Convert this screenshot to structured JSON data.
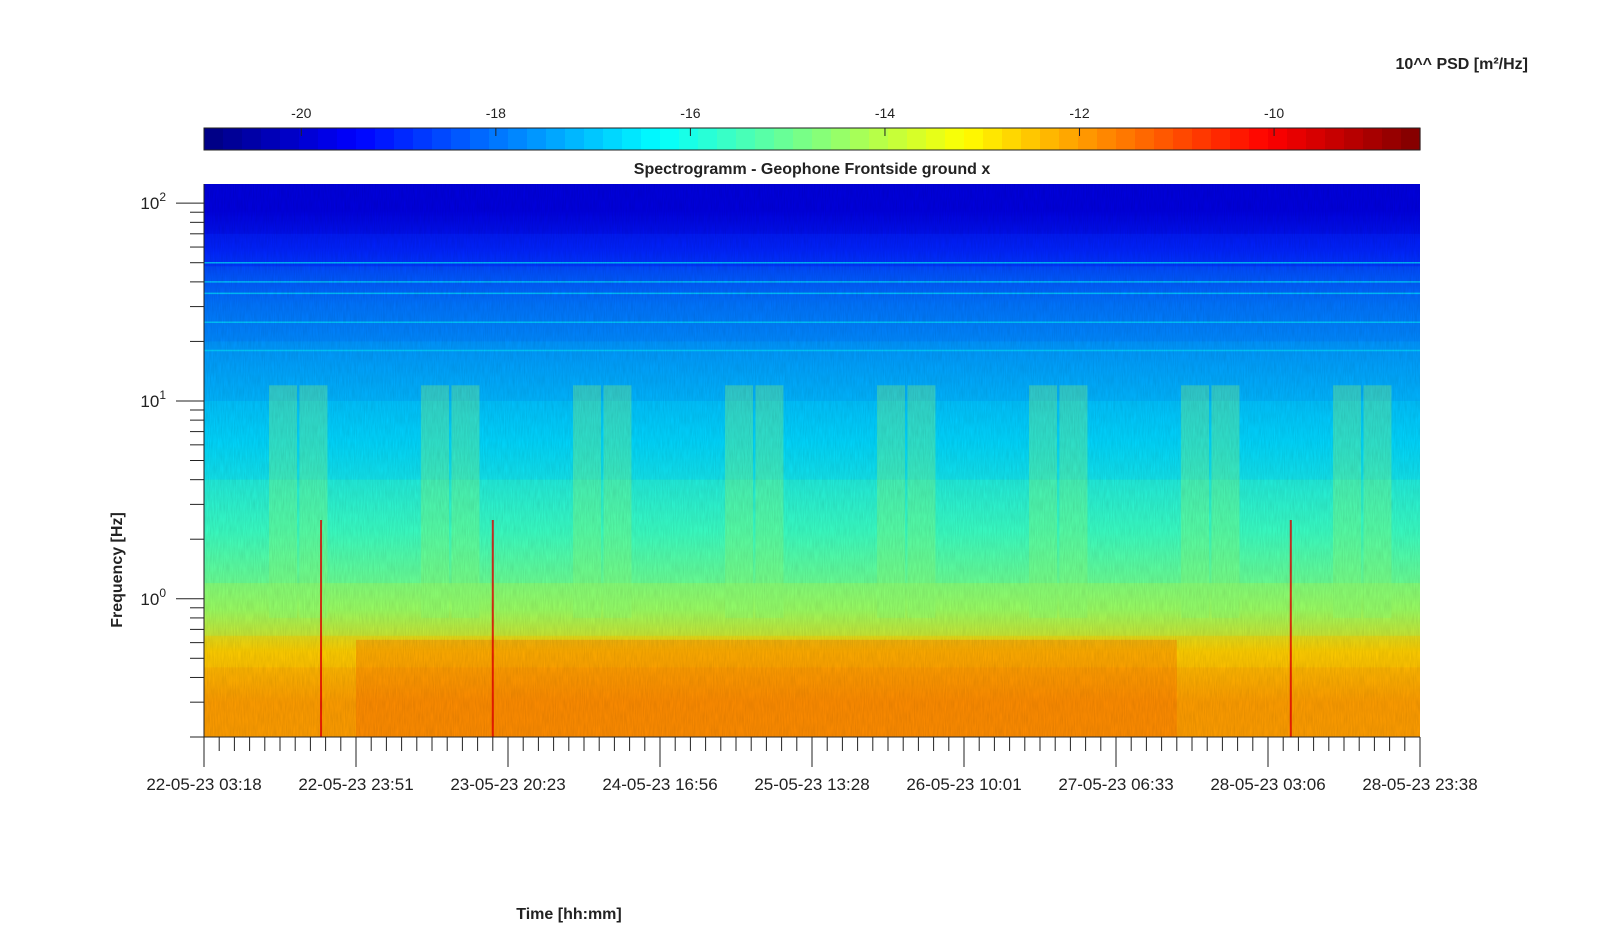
{
  "chart_data": {
    "type": "heatmap",
    "title": "Spectrogramm - Geophone Frontside ground x",
    "xlabel": "Time [hh:mm]",
    "ylabel": "Frequency [Hz]",
    "colorbar_label": "10^^ PSD [m²/Hz]",
    "colormap": "jet",
    "colorbar": {
      "range": [
        -21,
        -8.5
      ],
      "ticks": [
        -20,
        -18,
        -16,
        -14,
        -12,
        -10
      ],
      "tick_labels": [
        "-20",
        "-18",
        "-16",
        "-14",
        "-12",
        "-10"
      ]
    },
    "x_ticks": [
      "22-05-23 03:18",
      "22-05-23 23:51",
      "23-05-23 20:23",
      "24-05-23 16:56",
      "25-05-23 13:28",
      "26-05-23 10:01",
      "27-05-23 06:33",
      "28-05-23 03:06",
      "28-05-23 23:38"
    ],
    "y_scale": "log",
    "ylim": [
      0.2,
      125
    ],
    "y_ticks": [
      {
        "value": 1,
        "base": "10",
        "exp": "0"
      },
      {
        "value": 10,
        "base": "10",
        "exp": "1"
      },
      {
        "value": 100,
        "base": "10",
        "exp": "2"
      }
    ],
    "bands": [
      {
        "f_low": 70,
        "f_high": 125,
        "psd": -19.8
      },
      {
        "f_low": 48,
        "f_high": 70,
        "psd": -19.0
      },
      {
        "f_low": 20,
        "f_high": 48,
        "psd": -18.0
      },
      {
        "f_low": 10,
        "f_high": 20,
        "psd": -17.4
      },
      {
        "f_low": 4,
        "f_high": 10,
        "psd": -16.8
      },
      {
        "f_low": 1.2,
        "f_high": 4,
        "psd": -15.6
      },
      {
        "f_low": 0.65,
        "f_high": 1.2,
        "psd": -14.4
      },
      {
        "f_low": 0.45,
        "f_high": 0.65,
        "psd": -12.6
      },
      {
        "f_low": 0.2,
        "f_high": 0.45,
        "psd": -12.0
      }
    ],
    "narrowband_lines_hz": [
      50,
      40,
      35,
      25,
      18
    ]
  }
}
